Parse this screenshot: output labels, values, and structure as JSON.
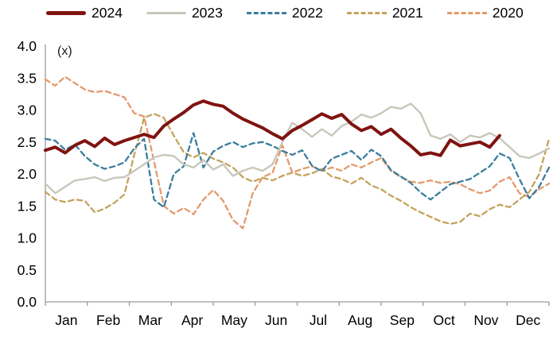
{
  "annotation": "(x)",
  "legend": {
    "items": [
      {
        "label": "2024",
        "color": "#7f1310",
        "dash": "solid",
        "thickness": 5
      },
      {
        "label": "2023",
        "color": "#c7c8ba",
        "dash": "solid",
        "thickness": 3
      },
      {
        "label": "2022",
        "color": "#3b7e9d",
        "dash": "dashed",
        "thickness": 3
      },
      {
        "label": "2021",
        "color": "#c3a35d",
        "dash": "dashed",
        "thickness": 3
      },
      {
        "label": "2020",
        "color": "#e49a6d",
        "dash": "dashed",
        "thickness": 3
      }
    ]
  },
  "axes": {
    "line_color": "#9c9c9c",
    "label_color": "#000000",
    "y_tick_labels": [
      "0.0",
      "0.5",
      "1.0",
      "1.5",
      "2.0",
      "2.5",
      "3.0",
      "3.5",
      "4.0"
    ],
    "x_tick_labels": [
      "Jan",
      "Feb",
      "Mar",
      "Apr",
      "May",
      "Jun",
      "Jul",
      "Aug",
      "Sep",
      "Oct",
      "Nov",
      "Dec"
    ]
  },
  "chart_data": {
    "type": "line",
    "title": "",
    "unit_label": "(x)",
    "xlabel": "",
    "ylabel": "",
    "ylim": [
      0.0,
      4.0
    ],
    "y_step": 0.5,
    "grid": false,
    "legend_position": "top",
    "x_categories": [
      "Jan",
      "Feb",
      "Mar",
      "Apr",
      "May",
      "Jun",
      "Jul",
      "Aug",
      "Sep",
      "Oct",
      "Nov",
      "Dec"
    ],
    "sampling": "weekly values, Jan through Dec; 2024 series ends late November",
    "series": [
      {
        "name": "2024",
        "color": "#7f1310",
        "style": "solid",
        "width": 4,
        "values": [
          2.37,
          2.42,
          2.33,
          2.45,
          2.52,
          2.43,
          2.56,
          2.46,
          2.52,
          2.57,
          2.62,
          2.57,
          2.75,
          2.86,
          2.96,
          3.08,
          3.14,
          3.09,
          3.06,
          2.95,
          2.86,
          2.79,
          2.72,
          2.63,
          2.55,
          2.68,
          2.76,
          2.85,
          2.94,
          2.87,
          2.93,
          2.78,
          2.68,
          2.74,
          2.62,
          2.7,
          2.56,
          2.44,
          2.3,
          2.33,
          2.29,
          2.53,
          2.44,
          2.47,
          2.5,
          2.42,
          2.6
        ]
      },
      {
        "name": "2023",
        "color": "#c7c8ba",
        "style": "solid",
        "width": 2.4,
        "values": [
          1.85,
          1.7,
          1.8,
          1.9,
          1.92,
          1.95,
          1.89,
          1.94,
          1.95,
          2.05,
          2.15,
          2.26,
          2.3,
          2.28,
          2.15,
          2.1,
          2.22,
          2.07,
          2.15,
          1.97,
          2.05,
          2.1,
          2.05,
          2.15,
          2.5,
          2.8,
          2.7,
          2.58,
          2.7,
          2.6,
          2.75,
          2.82,
          2.93,
          2.88,
          2.95,
          3.05,
          3.02,
          3.1,
          2.95,
          2.6,
          2.55,
          2.62,
          2.5,
          2.6,
          2.57,
          2.64,
          2.56,
          2.42,
          2.28,
          2.25,
          2.32,
          2.4
        ]
      },
      {
        "name": "2022",
        "color": "#3b7e9d",
        "style": "dashed",
        "width": 2.3,
        "values": [
          2.55,
          2.52,
          2.38,
          2.46,
          2.28,
          2.15,
          2.08,
          2.12,
          2.18,
          2.4,
          2.55,
          1.6,
          1.48,
          2.0,
          2.12,
          2.64,
          2.1,
          2.35,
          2.44,
          2.5,
          2.42,
          2.48,
          2.5,
          2.44,
          2.36,
          2.3,
          2.37,
          2.13,
          2.04,
          2.24,
          2.3,
          2.36,
          2.22,
          2.38,
          2.28,
          2.06,
          1.96,
          1.86,
          1.71,
          1.6,
          1.72,
          1.84,
          1.88,
          1.92,
          2.02,
          2.12,
          2.32,
          2.25,
          1.92,
          1.62,
          1.8,
          2.1
        ]
      },
      {
        "name": "2021",
        "color": "#c3a35d",
        "style": "dashed",
        "width": 2.3,
        "values": [
          1.72,
          1.6,
          1.56,
          1.6,
          1.58,
          1.4,
          1.46,
          1.55,
          1.68,
          2.3,
          2.88,
          2.94,
          2.88,
          2.6,
          2.34,
          2.26,
          2.33,
          2.24,
          2.18,
          2.1,
          1.95,
          1.88,
          1.94,
          1.9,
          1.97,
          2.02,
          1.97,
          2.01,
          2.08,
          1.96,
          1.92,
          1.85,
          1.94,
          1.82,
          1.76,
          1.66,
          1.58,
          1.48,
          1.4,
          1.33,
          1.26,
          1.22,
          1.25,
          1.38,
          1.34,
          1.45,
          1.52,
          1.48,
          1.6,
          1.72,
          2.0,
          2.55
        ]
      },
      {
        "name": "2020",
        "color": "#e49a6d",
        "style": "dashed",
        "width": 2.3,
        "values": [
          3.48,
          3.38,
          3.52,
          3.42,
          3.32,
          3.28,
          3.3,
          3.25,
          3.2,
          2.95,
          2.9,
          2.2,
          1.5,
          1.38,
          1.47,
          1.37,
          1.6,
          1.75,
          1.58,
          1.28,
          1.15,
          1.7,
          1.95,
          2.02,
          2.45,
          2.02,
          2.08,
          2.12,
          2.05,
          2.1,
          2.05,
          2.15,
          2.1,
          2.18,
          2.25,
          2.05,
          1.95,
          1.88,
          1.86,
          1.9,
          1.86,
          1.88,
          1.84,
          1.76,
          1.7,
          1.74,
          1.88,
          1.95,
          1.7,
          1.64,
          1.76,
          1.85
        ]
      }
    ]
  }
}
